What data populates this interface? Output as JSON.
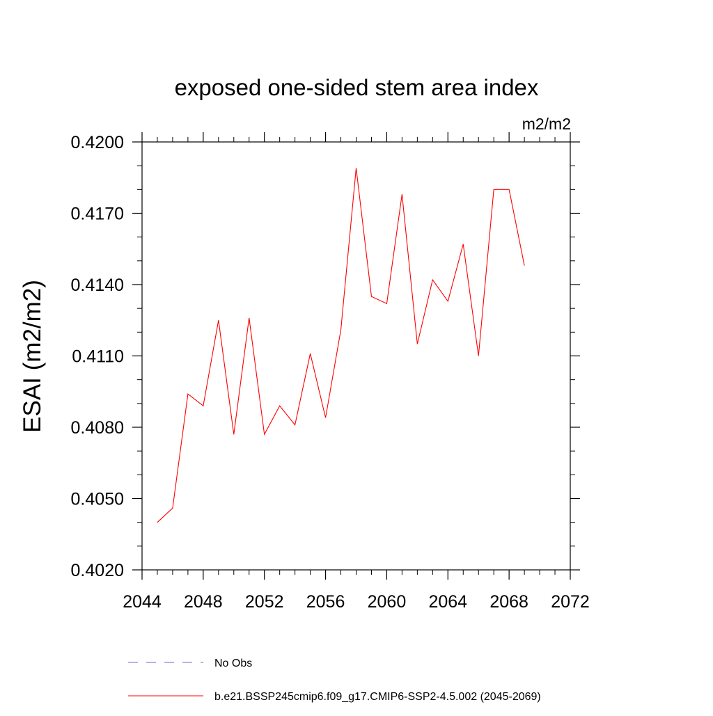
{
  "chart_data": {
    "type": "line",
    "title": "exposed one-sided stem area index",
    "units": "m2/m2",
    "xlabel": "",
    "ylabel": "ESAI  (m2/m2)",
    "xlim": [
      2044,
      2072
    ],
    "ylim": [
      0.402,
      0.42
    ],
    "x_ticks": [
      2044,
      2048,
      2052,
      2056,
      2060,
      2064,
      2068,
      2072
    ],
    "x_tick_labels": [
      "2044",
      "2048",
      "2052",
      "2056",
      "2060",
      "2064",
      "2068",
      "2072"
    ],
    "y_ticks": [
      0.402,
      0.405,
      0.408,
      0.411,
      0.414,
      0.417,
      0.42
    ],
    "y_tick_labels": [
      "0.4020",
      "0.4050",
      "0.4080",
      "0.4110",
      "0.4140",
      "0.4170",
      "0.4200"
    ],
    "grid": false,
    "series": [
      {
        "name": "b.e21.BSSP245cmip6.f09_g17.CMIP6-SSP2-4.5.002 (2045-2069)",
        "color": "#ff0000",
        "dash": "solid",
        "x": [
          2045,
          2046,
          2047,
          2048,
          2049,
          2050,
          2051,
          2052,
          2053,
          2054,
          2055,
          2056,
          2057,
          2058,
          2059,
          2060,
          2061,
          2062,
          2063,
          2064,
          2065,
          2066,
          2067,
          2068,
          2069
        ],
        "values": [
          0.404,
          0.4046,
          0.4094,
          0.4089,
          0.4125,
          0.4077,
          0.4126,
          0.4077,
          0.4089,
          0.4081,
          0.4111,
          0.4084,
          0.4121,
          0.4189,
          0.4135,
          0.4132,
          0.4178,
          0.4115,
          0.4142,
          0.4133,
          0.4157,
          0.411,
          0.418,
          0.418,
          0.4148
        ]
      }
    ],
    "legend": {
      "placement": "bottom",
      "entries": [
        {
          "label": "No Obs",
          "color": "#6a6ad0",
          "dash": "dashed"
        },
        {
          "label": "b.e21.BSSP245cmip6.f09_g17.CMIP6-SSP2-4.5.002 (2045-2069)",
          "color": "#ff0000",
          "dash": "solid"
        }
      ]
    }
  }
}
